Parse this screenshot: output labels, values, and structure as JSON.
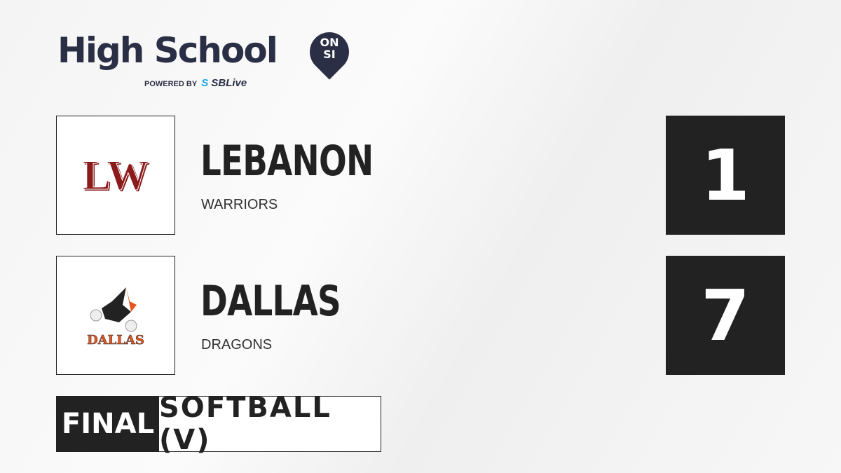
{
  "brand": {
    "title": "High School",
    "badge_line1": "ON",
    "badge_line2": "SI",
    "powered_by": "POWERED BY",
    "partner_s": "S",
    "partner": "SBLive"
  },
  "teams": [
    {
      "name": "LEBANON",
      "mascot": "WARRIORS",
      "logo_text": "LW",
      "score": "1",
      "logo_color": "#8b1a1a"
    },
    {
      "name": "DALLAS",
      "mascot": "DRAGONS",
      "logo_text": "DALLAS",
      "score": "7",
      "logo_color": "#e8541b"
    }
  ],
  "game": {
    "status": "FINAL",
    "sport": "SOFTBALL (V)"
  }
}
